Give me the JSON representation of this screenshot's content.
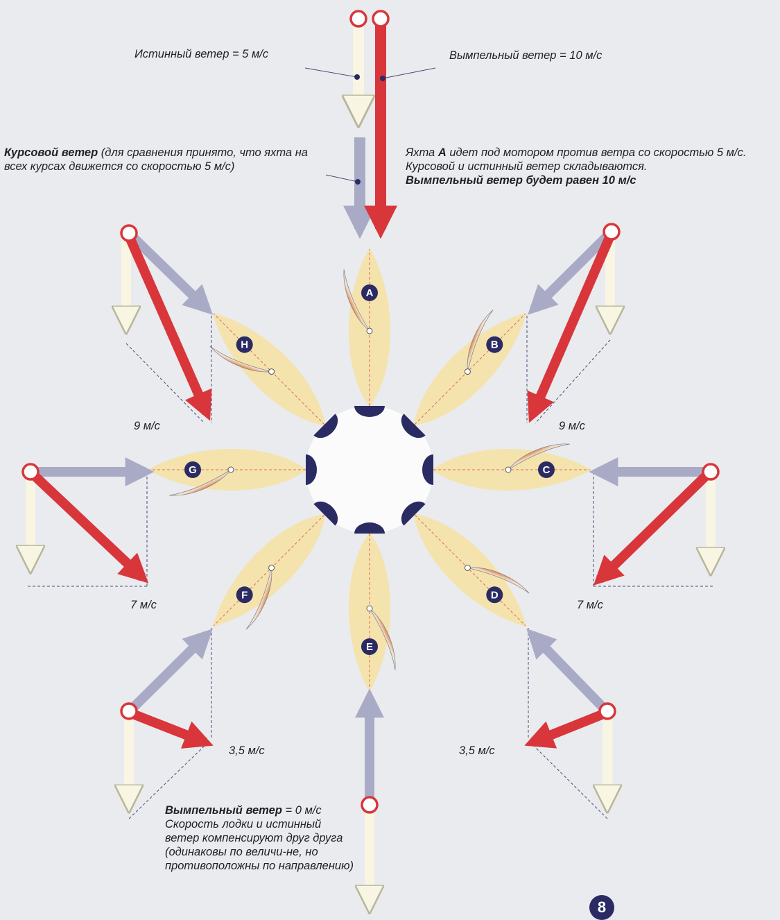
{
  "labels": {
    "true_wind": "Истинный ветер = 5 м/с",
    "apparent_wind": "Вымпельный ветер = 10 м/с",
    "course_wind_bold": "Курсовой ветер",
    "course_wind_rest": " (для сравнения принято, что яхта на всех курсах движется со скоростью 5 м/с)",
    "yacht_a_part1": "Яхта ",
    "yacht_a_letter": "A",
    "yacht_a_part2": " идет под мотором против ветра со скоростью 5 м/с. Курсовой и истинный ветер складываются.",
    "yacht_a_bold": "Вымпельный ветер будет равен 10 м/с",
    "speed_9_left": "9 м/с",
    "speed_9_right": "9 м/с",
    "speed_7_left": "7 м/с",
    "speed_7_right": "7 м/с",
    "speed_35_left": "3,5 м/с",
    "speed_35_right": "3,5 м/с",
    "apparent_zero_bold": "Вымпельный ветер",
    "apparent_zero_rest": " = 0 м/с",
    "apparent_zero_text": "Скорость лодки и истинный ветер компенсируют друг друга (одинаковы по величи-не, но противоположны по направлению)"
  },
  "boats": [
    "A",
    "B",
    "C",
    "D",
    "E",
    "F",
    "G",
    "H"
  ],
  "page_number": "8",
  "colors": {
    "true_wind": "#f8f5e2",
    "course_wind": "#a9abc6",
    "apparent_wind": "#d8363b",
    "petal": "#f4e3ad",
    "navy": "#2a2b63"
  },
  "icons": [
    "wind-origin-marker-icon",
    "arrow-icon",
    "sail-icon",
    "boat-letter-marker-icon",
    "page-number-badge"
  ]
}
